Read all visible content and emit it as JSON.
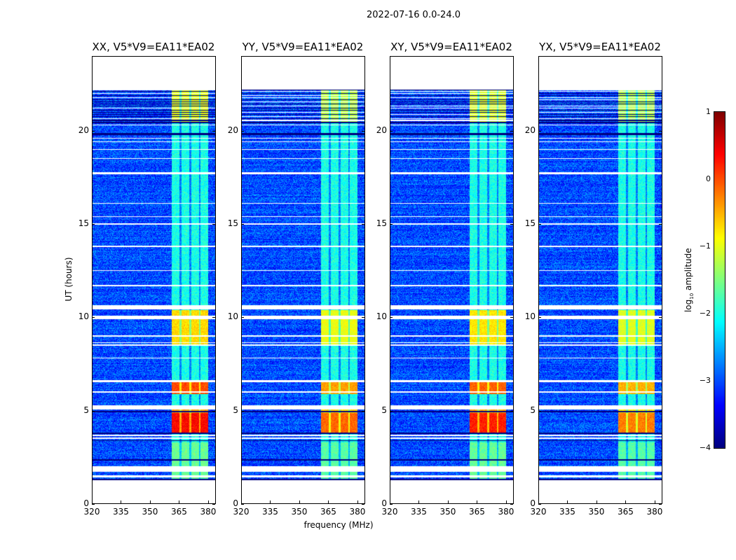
{
  "suptitle": "2022-07-16 0.0-24.0",
  "chart_data": {
    "type": "heatmap",
    "title": "2022-07-16 0.0-24.0",
    "xlabel": "frequency (MHz)",
    "ylabel": "UT (hours)",
    "xlim": [
      320,
      384
    ],
    "ylim": [
      0,
      24
    ],
    "xticks": [
      "320",
      "335",
      "350",
      "365",
      "380"
    ],
    "yticks": [
      "0",
      "5",
      "10",
      "15",
      "20"
    ],
    "panels": [
      {
        "title": "XX, V5*V9=EA11*EA02",
        "gain": 1.0
      },
      {
        "title": "YY, V5*V9=EA11*EA02",
        "gain": 0.8
      },
      {
        "title": "XY, V5*V9=EA11*EA02",
        "gain": 0.95
      },
      {
        "title": "YX, V5*V9=EA11*EA02",
        "gain": 0.75
      }
    ],
    "colorbar": {
      "label_prefix": "log",
      "label_sub": "10",
      "label_suffix": " amplitude",
      "range": [
        -4,
        1
      ],
      "ticks": [
        "1",
        "0",
        "−1",
        "−2",
        "−3",
        "−4"
      ],
      "colormap": "jet"
    },
    "data_time_range": [
      1.3,
      22.2
    ],
    "background_log_amplitude": -3.0,
    "rfi_band_mhz": [
      361,
      380
    ],
    "rfi_subband_edges_mhz": [
      365.5,
      370.5,
      375.5
    ],
    "rfi_segments": [
      {
        "t": [
          1.3,
          3.3
        ],
        "level": -1.6
      },
      {
        "t": [
          3.85,
          4.9
        ],
        "level": 0.35
      },
      {
        "t": [
          4.9,
          5.1
        ],
        "level": -0.4
      },
      {
        "t": [
          5.9,
          6.55
        ],
        "level": 0.0
      },
      {
        "t": [
          8.5,
          10.4
        ],
        "level": -0.7
      },
      {
        "t": [
          20.5,
          22.2
        ],
        "level": -1.0
      }
    ],
    "flagged_white_hours": [
      [
        1.45,
        1.55
      ],
      [
        1.75,
        2.05
      ],
      [
        3.5,
        3.6
      ],
      [
        3.65,
        3.72
      ],
      [
        5.1,
        5.3
      ],
      [
        6.0,
        6.05
      ],
      [
        6.55,
        6.65
      ],
      [
        7.8,
        7.85
      ],
      [
        8.5,
        8.55
      ],
      [
        8.65,
        8.7
      ],
      [
        9.0,
        9.05
      ],
      [
        9.9,
        10.1
      ],
      [
        10.45,
        10.65
      ],
      [
        11.7,
        11.75
      ],
      [
        12.5,
        12.55
      ],
      [
        13.8,
        13.85
      ],
      [
        15.0,
        15.05
      ],
      [
        15.4,
        15.45
      ],
      [
        16.1,
        16.15
      ],
      [
        17.7,
        17.8
      ],
      [
        18.5,
        18.55
      ],
      [
        19.0,
        19.05
      ],
      [
        19.4,
        19.45
      ],
      [
        19.6,
        19.65
      ],
      [
        20.3,
        20.35
      ]
    ],
    "flagged_dark_hours": [
      [
        1.3,
        1.38
      ],
      [
        2.35,
        2.42
      ],
      [
        3.4,
        3.45
      ],
      [
        3.78,
        3.85
      ],
      [
        4.95,
        5.0
      ],
      [
        19.8,
        19.9
      ],
      [
        20.42,
        20.5
      ]
    ]
  }
}
